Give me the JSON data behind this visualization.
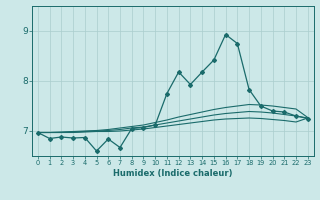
{
  "xlabel": "Humidex (Indice chaleur)",
  "bg_color": "#cce8e8",
  "line_color": "#1a6b6b",
  "grid_color": "#aacece",
  "x_values": [
    0,
    1,
    2,
    3,
    4,
    5,
    6,
    7,
    8,
    9,
    10,
    11,
    12,
    13,
    14,
    15,
    16,
    17,
    18,
    19,
    20,
    21,
    22,
    23
  ],
  "line1": [
    6.97,
    6.85,
    6.88,
    6.86,
    6.87,
    6.6,
    6.84,
    6.67,
    7.05,
    7.07,
    7.12,
    7.75,
    8.18,
    7.93,
    8.18,
    8.42,
    8.93,
    8.75,
    7.83,
    7.5,
    7.4,
    7.38,
    7.3,
    7.25
  ],
  "line2": [
    6.97,
    6.97,
    6.98,
    6.99,
    7.0,
    7.01,
    7.03,
    7.06,
    7.09,
    7.12,
    7.17,
    7.22,
    7.28,
    7.33,
    7.38,
    7.43,
    7.47,
    7.5,
    7.53,
    7.52,
    7.5,
    7.47,
    7.44,
    7.27
  ],
  "line3": [
    6.97,
    6.97,
    6.97,
    6.98,
    6.99,
    7.0,
    7.01,
    7.03,
    7.06,
    7.08,
    7.12,
    7.16,
    7.2,
    7.24,
    7.28,
    7.32,
    7.35,
    7.37,
    7.39,
    7.38,
    7.36,
    7.33,
    7.3,
    7.26
  ],
  "line4": [
    6.97,
    6.97,
    6.97,
    6.97,
    6.98,
    6.99,
    6.99,
    7.0,
    7.02,
    7.04,
    7.07,
    7.1,
    7.13,
    7.16,
    7.19,
    7.22,
    7.24,
    7.25,
    7.26,
    7.25,
    7.23,
    7.21,
    7.18,
    7.26
  ],
  "xlim": [
    -0.5,
    23.5
  ],
  "ylim": [
    6.5,
    9.5
  ],
  "yticks": [
    7,
    8,
    9
  ],
  "xticks": [
    0,
    1,
    2,
    3,
    4,
    5,
    6,
    7,
    8,
    9,
    10,
    11,
    12,
    13,
    14,
    15,
    16,
    17,
    18,
    19,
    20,
    21,
    22,
    23
  ],
  "figsize": [
    3.2,
    2.0
  ],
  "dpi": 100
}
